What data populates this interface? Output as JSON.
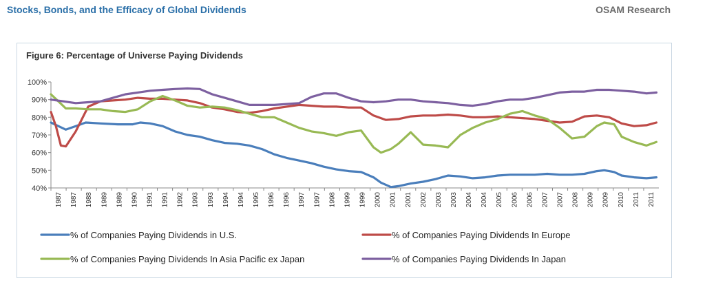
{
  "header": {
    "title": "Stocks, Bonds, and the Efficacy of Global Dividends",
    "brand": "OSAM Research"
  },
  "chart_data": {
    "type": "line",
    "title": "Figure 6: Percentage of Universe Paying Dividends",
    "xlabel": "",
    "ylabel": "",
    "ylim": [
      40,
      100
    ],
    "yticks": [
      "40%",
      "50%",
      "60%",
      "70%",
      "80%",
      "90%",
      "100%"
    ],
    "x_range": [
      1987,
      2011.5
    ],
    "xticks": [
      "1987",
      "1987",
      "1988",
      "1989",
      "1989",
      "1990",
      "1991",
      "1991",
      "1992",
      "1993",
      "1993",
      "1994",
      "1994",
      "1995",
      "1996",
      "1996",
      "1997",
      "1997",
      "1998",
      "1999",
      "1999",
      "2000",
      "2001",
      "2001",
      "2002",
      "2003",
      "2003",
      "2004",
      "2004",
      "2005",
      "2006",
      "2006",
      "2007",
      "2007",
      "2008",
      "2009",
      "2009",
      "2010",
      "2011",
      "2011"
    ],
    "grid": false,
    "legend_position": "bottom",
    "series": [
      {
        "name": "% of Companies Paying Dividends in U.S.",
        "color": "#4a7ebb",
        "x": [
          1987.0,
          1987.3,
          1987.6,
          1988.0,
          1988.4,
          1989.0,
          1989.7,
          1990.3,
          1990.6,
          1991.0,
          1991.5,
          1992.0,
          1992.5,
          1993.0,
          1993.5,
          1994.0,
          1994.5,
          1995.0,
          1995.5,
          1996.0,
          1996.5,
          1997.0,
          1997.5,
          1998.0,
          1998.5,
          1999.0,
          1999.5,
          2000.0,
          2000.3,
          2000.7,
          2001.0,
          2001.5,
          2002.0,
          2002.5,
          2003.0,
          2003.5,
          2004.0,
          2004.5,
          2005.0,
          2005.5,
          2006.0,
          2006.5,
          2007.0,
          2007.5,
          2008.0,
          2008.5,
          2009.0,
          2009.3,
          2009.7,
          2010.0,
          2010.5,
          2011.0,
          2011.4
        ],
        "y": [
          77,
          75,
          73,
          75,
          77,
          76.5,
          76,
          76,
          77,
          76.5,
          75,
          72,
          70,
          69,
          67,
          65.5,
          65,
          64,
          62,
          59,
          57,
          55.5,
          54,
          52,
          50.5,
          49.5,
          49,
          46,
          43,
          40.5,
          41,
          42.5,
          43.5,
          45,
          47,
          46.5,
          45.5,
          46,
          47,
          47.5,
          47.5,
          47.5,
          48,
          47.5,
          47.5,
          48,
          49.5,
          50,
          49,
          47,
          46,
          45.5,
          46
        ]
      },
      {
        "name": "% of Companies Paying Dividends In Europe",
        "color": "#be4b48",
        "x": [
          1987.0,
          1987.2,
          1987.4,
          1987.6,
          1988.0,
          1988.5,
          1989.0,
          1989.5,
          1990.0,
          1990.5,
          1991.0,
          1991.5,
          1992.0,
          1992.5,
          1993.0,
          1993.5,
          1994.0,
          1994.5,
          1995.0,
          1995.5,
          1996.0,
          1996.5,
          1997.0,
          1997.5,
          1998.0,
          1998.5,
          1999.0,
          1999.5,
          2000.0,
          2000.5,
          2001.0,
          2001.5,
          2002.0,
          2002.5,
          2003.0,
          2003.5,
          2004.0,
          2004.5,
          2005.0,
          2005.5,
          2006.0,
          2006.5,
          2007.0,
          2007.5,
          2008.0,
          2008.5,
          2009.0,
          2009.5,
          2010.0,
          2010.5,
          2011.0,
          2011.4
        ],
        "y": [
          83,
          75,
          64,
          63.5,
          72,
          86,
          89,
          89.5,
          90,
          91,
          90.5,
          90.5,
          90,
          89.5,
          88,
          85.5,
          84.5,
          83,
          82.5,
          83.5,
          85,
          86,
          87,
          86.5,
          86,
          86,
          85.5,
          85.5,
          81,
          78.5,
          79,
          80.5,
          81,
          81,
          81.5,
          81,
          80,
          80,
          80.5,
          80,
          79.5,
          79,
          78,
          77,
          77.5,
          80.5,
          81,
          80,
          76.5,
          75,
          75.5,
          77
        ]
      },
      {
        "name": "% of Companies Paying Dividends In Asia Pacific ex Japan",
        "color": "#98b954",
        "x": [
          1987.0,
          1987.3,
          1987.6,
          1988.0,
          1988.5,
          1989.0,
          1989.5,
          1990.0,
          1990.5,
          1991.0,
          1991.5,
          1992.0,
          1992.5,
          1993.0,
          1993.5,
          1994.0,
          1994.5,
          1995.0,
          1995.5,
          1996.0,
          1996.5,
          1997.0,
          1997.5,
          1998.0,
          1998.5,
          1999.0,
          1999.5,
          2000.0,
          2000.3,
          2000.7,
          2001.0,
          2001.5,
          2002.0,
          2002.5,
          2003.0,
          2003.5,
          2004.0,
          2004.5,
          2005.0,
          2005.5,
          2006.0,
          2006.5,
          2007.0,
          2007.5,
          2008.0,
          2008.5,
          2009.0,
          2009.3,
          2009.7,
          2010.0,
          2010.5,
          2011.0,
          2011.4
        ],
        "y": [
          93,
          89,
          85,
          85,
          84.5,
          84.5,
          83.5,
          83,
          84.5,
          89,
          92,
          89.5,
          86.5,
          85.5,
          86,
          85.5,
          84,
          82,
          80,
          80,
          77,
          74,
          72,
          71,
          69.5,
          71.5,
          72.5,
          63,
          60,
          62,
          65,
          71.5,
          64.5,
          64,
          63,
          70,
          74,
          77,
          79,
          82,
          83.5,
          81,
          79,
          74,
          68,
          69,
          75,
          77,
          76,
          69,
          66,
          64,
          66
        ]
      },
      {
        "name": "% of Companies Paying Dividends In Japan",
        "color": "#7d60a0",
        "x": [
          1987.0,
          1987.5,
          1988.0,
          1988.5,
          1989.0,
          1989.5,
          1990.0,
          1990.5,
          1991.0,
          1991.5,
          1992.0,
          1992.5,
          1993.0,
          1993.5,
          1994.0,
          1994.5,
          1995.0,
          1995.5,
          1996.0,
          1996.5,
          1997.0,
          1997.5,
          1998.0,
          1998.5,
          1999.0,
          1999.5,
          2000.0,
          2000.5,
          2001.0,
          2001.5,
          2002.0,
          2002.5,
          2003.0,
          2003.5,
          2004.0,
          2004.5,
          2005.0,
          2005.5,
          2006.0,
          2006.5,
          2007.0,
          2007.5,
          2008.0,
          2008.5,
          2009.0,
          2009.5,
          2010.0,
          2010.5,
          2011.0,
          2011.4
        ],
        "y": [
          90,
          89,
          88,
          88.5,
          89,
          91,
          93,
          94,
          95,
          95.5,
          96,
          96.3,
          96,
          93,
          91,
          89,
          87,
          87,
          87,
          87.5,
          88,
          91.5,
          93.5,
          93.5,
          91,
          89,
          88.5,
          89,
          90,
          90,
          89,
          88.5,
          88,
          87,
          86.5,
          87.5,
          89,
          90,
          90,
          91,
          92.5,
          94,
          94.5,
          94.5,
          95.5,
          95.5,
          95,
          94.5,
          93.5,
          94
        ]
      }
    ]
  }
}
